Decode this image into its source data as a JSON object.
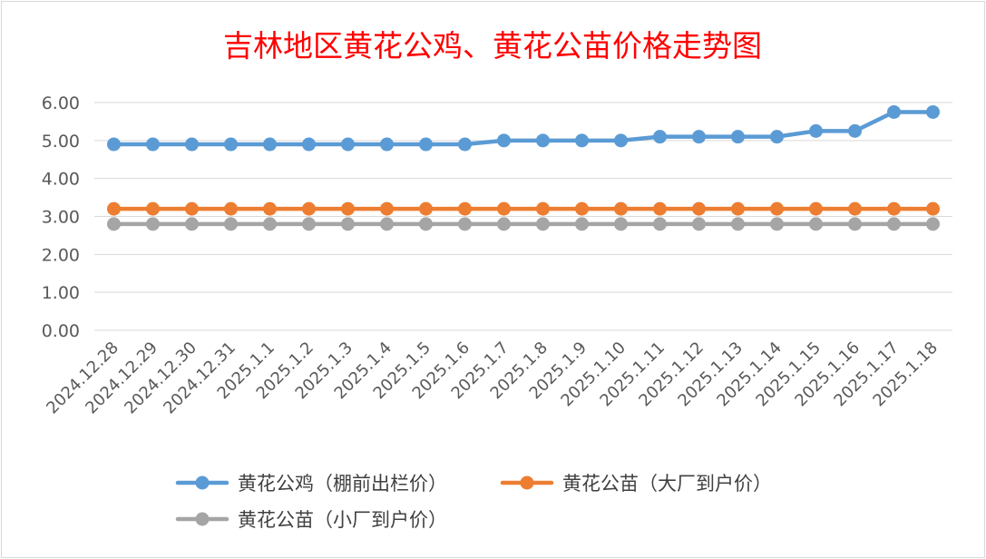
{
  "chart_data": {
    "type": "line",
    "title": "吉林地区黄花公鸡、黄花公苗价格走势图",
    "xlabel": "",
    "ylabel": "",
    "ylim": [
      0,
      6
    ],
    "yticks": [
      "0.00",
      "1.00",
      "2.00",
      "3.00",
      "4.00",
      "5.00",
      "6.00"
    ],
    "grid": true,
    "legend_position": "bottom",
    "categories": [
      "2024.12.28",
      "2024.12.29",
      "2024.12.30",
      "2024.12.31",
      "2025.1.1",
      "2025.1.2",
      "2025.1.3",
      "2025.1.4",
      "2025.1.5",
      "2025.1.6",
      "2025.1.7",
      "2025.1.8",
      "2025.1.9",
      "2025.1.10",
      "2025.1.11",
      "2025.1.12",
      "2025.1.13",
      "2025.1.14",
      "2025.1.15",
      "2025.1.16",
      "2025.1.17",
      "2025.1.18"
    ],
    "series": [
      {
        "name": "黄花公鸡（棚前出栏价）",
        "color": "#5b9bd5",
        "values": [
          4.9,
          4.9,
          4.9,
          4.9,
          4.9,
          4.9,
          4.9,
          4.9,
          4.9,
          4.9,
          5.0,
          5.0,
          5.0,
          5.0,
          5.1,
          5.1,
          5.1,
          5.1,
          5.25,
          5.25,
          5.75,
          5.75
        ]
      },
      {
        "name": "黄花公苗（大厂到户价）",
        "color": "#ed7d31",
        "values": [
          3.2,
          3.2,
          3.2,
          3.2,
          3.2,
          3.2,
          3.2,
          3.2,
          3.2,
          3.2,
          3.2,
          3.2,
          3.2,
          3.2,
          3.2,
          3.2,
          3.2,
          3.2,
          3.2,
          3.2,
          3.2,
          3.2
        ]
      },
      {
        "name": "黄花公苗（小厂到户价）",
        "color": "#a5a5a5",
        "values": [
          2.8,
          2.8,
          2.8,
          2.8,
          2.8,
          2.8,
          2.8,
          2.8,
          2.8,
          2.8,
          2.8,
          2.8,
          2.8,
          2.8,
          2.8,
          2.8,
          2.8,
          2.8,
          2.8,
          2.8,
          2.8,
          2.8
        ]
      }
    ]
  }
}
